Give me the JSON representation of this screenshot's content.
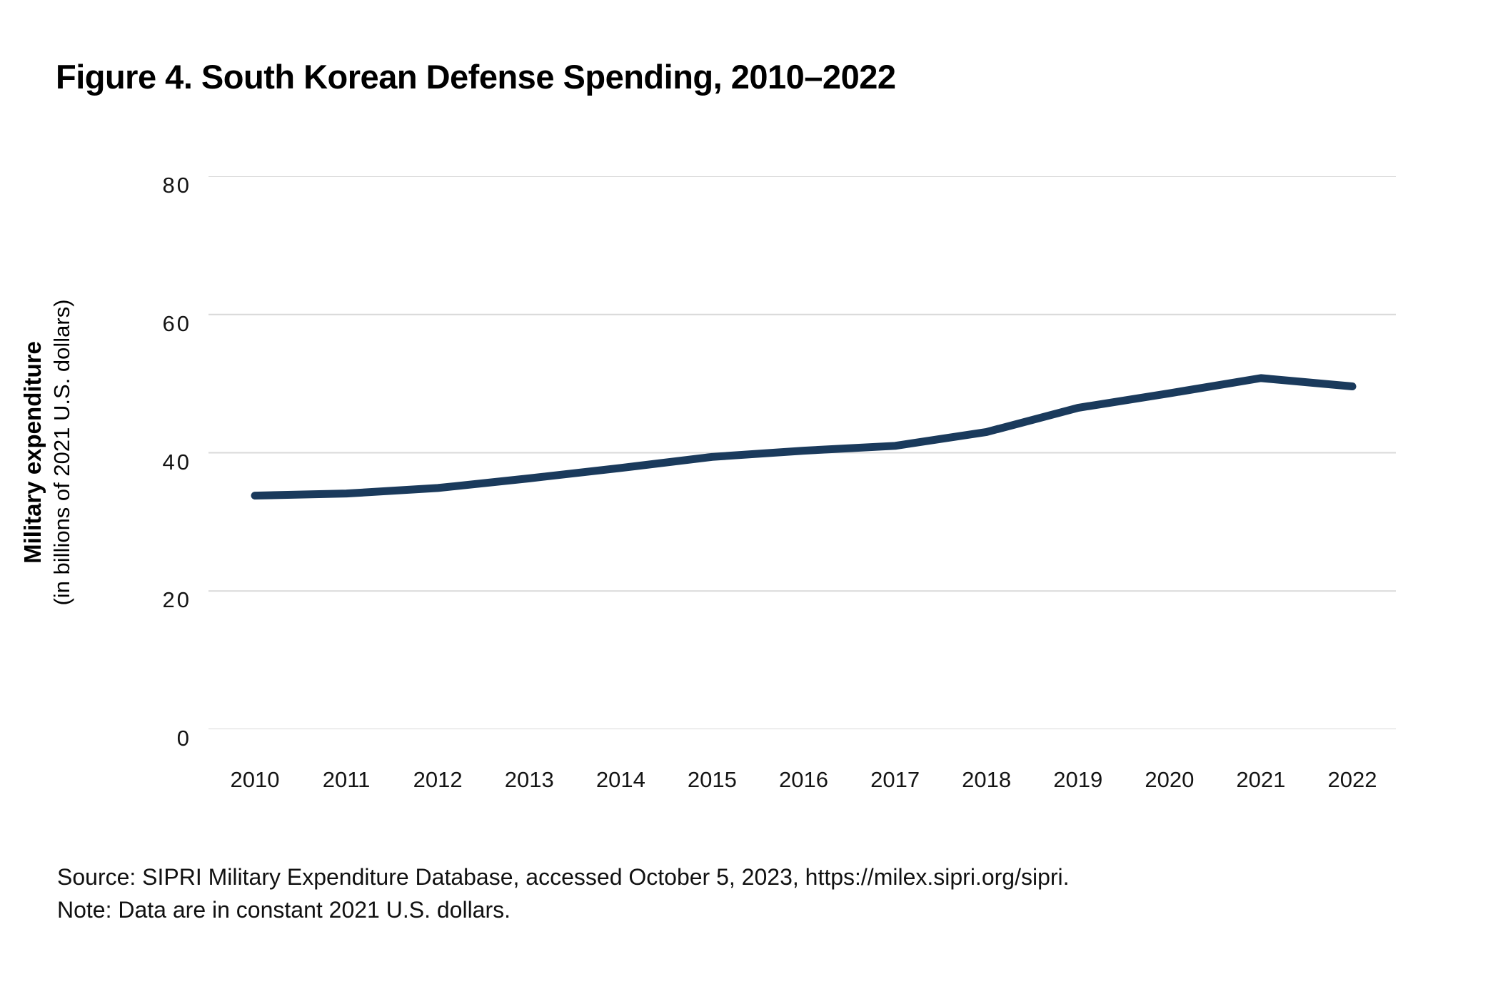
{
  "figure": {
    "title": "Figure 4. South Korean Defense Spending, 2010–2022",
    "source": "Source: SIPRI Military Expenditure Database, accessed October 5, 2023, https://milex.sipri.org/sipri.",
    "note": "Note: Data are in constant 2021 U.S. dollars."
  },
  "colors": {
    "line": "#1a3a5c",
    "grid": "#d9d9d9",
    "text": "#000000"
  },
  "chart_data": {
    "type": "line",
    "title": "Figure 4. South Korean Defense Spending, 2010–2022",
    "x": [
      2010,
      2011,
      2012,
      2013,
      2014,
      2015,
      2016,
      2017,
      2018,
      2019,
      2020,
      2021,
      2022
    ],
    "series": [
      {
        "name": "South Korean military expenditure",
        "values": [
          33.8,
          34.1,
          34.9,
          36.3,
          37.8,
          39.4,
          40.3,
          41.0,
          43.0,
          46.5,
          48.6,
          50.8,
          49.6
        ]
      }
    ],
    "xlabel": "",
    "ylabel_bold": "Military expenditure",
    "ylabel_sub": "(in billions of 2021 U.S. dollars)",
    "ylim": [
      0,
      80
    ],
    "yticks": [
      0,
      20,
      40,
      60,
      80
    ],
    "grid": "horizontal-only",
    "legend_position": "none",
    "line_color": "#1a3a5c"
  }
}
